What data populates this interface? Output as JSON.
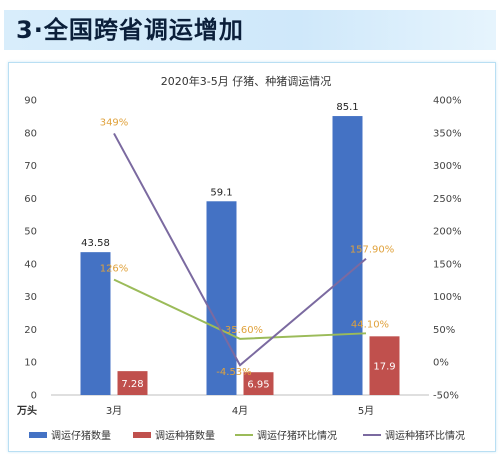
{
  "banner": {
    "title": "3·全国跨省调运增加"
  },
  "colors": {
    "bar1": "#4472c4",
    "bar2": "#c0504d",
    "line1": "#9bbb59",
    "line2": "#7b6aa0",
    "label_line1": "#e0a23c",
    "label_line2": "#e0a23c"
  },
  "chart_data": {
    "type": "bar",
    "title": "2020年3-5月 仔猪、种猪调运情况",
    "categories": [
      "3月",
      "4月",
      "5月"
    ],
    "y_unit": "万头",
    "ylim": [
      0,
      90
    ],
    "y_ticks": [
      "0",
      "10",
      "20",
      "30",
      "40",
      "50",
      "60",
      "70",
      "80",
      "90"
    ],
    "y2lim": [
      -50,
      400
    ],
    "y2_ticks": [
      "-50%",
      "0%",
      "50%",
      "100%",
      "150%",
      "200%",
      "250%",
      "300%",
      "350%",
      "400%"
    ],
    "legend_position": "bottom",
    "grid": false,
    "series": [
      {
        "name": "调运仔猪数量",
        "kind": "bar",
        "values": [
          43.58,
          59.1,
          85.1
        ],
        "labels": [
          "43.58",
          "59.1",
          "85.1"
        ]
      },
      {
        "name": "调运种猪数量",
        "kind": "bar",
        "values": [
          7.28,
          6.95,
          17.9
        ],
        "labels": [
          "7.28",
          "6.95",
          "17.9"
        ]
      },
      {
        "name": "调运仔猪环比情况",
        "kind": "line",
        "axis": "right",
        "values": [
          126,
          35.6,
          44.1
        ],
        "labels": [
          "126%",
          "35.60%",
          "44.10%"
        ]
      },
      {
        "name": "调运种猪环比情况",
        "kind": "line",
        "axis": "right",
        "values": [
          349,
          -4.5,
          157.9
        ],
        "labels": [
          "349%",
          "-4.53%",
          "157.90%"
        ]
      }
    ]
  }
}
